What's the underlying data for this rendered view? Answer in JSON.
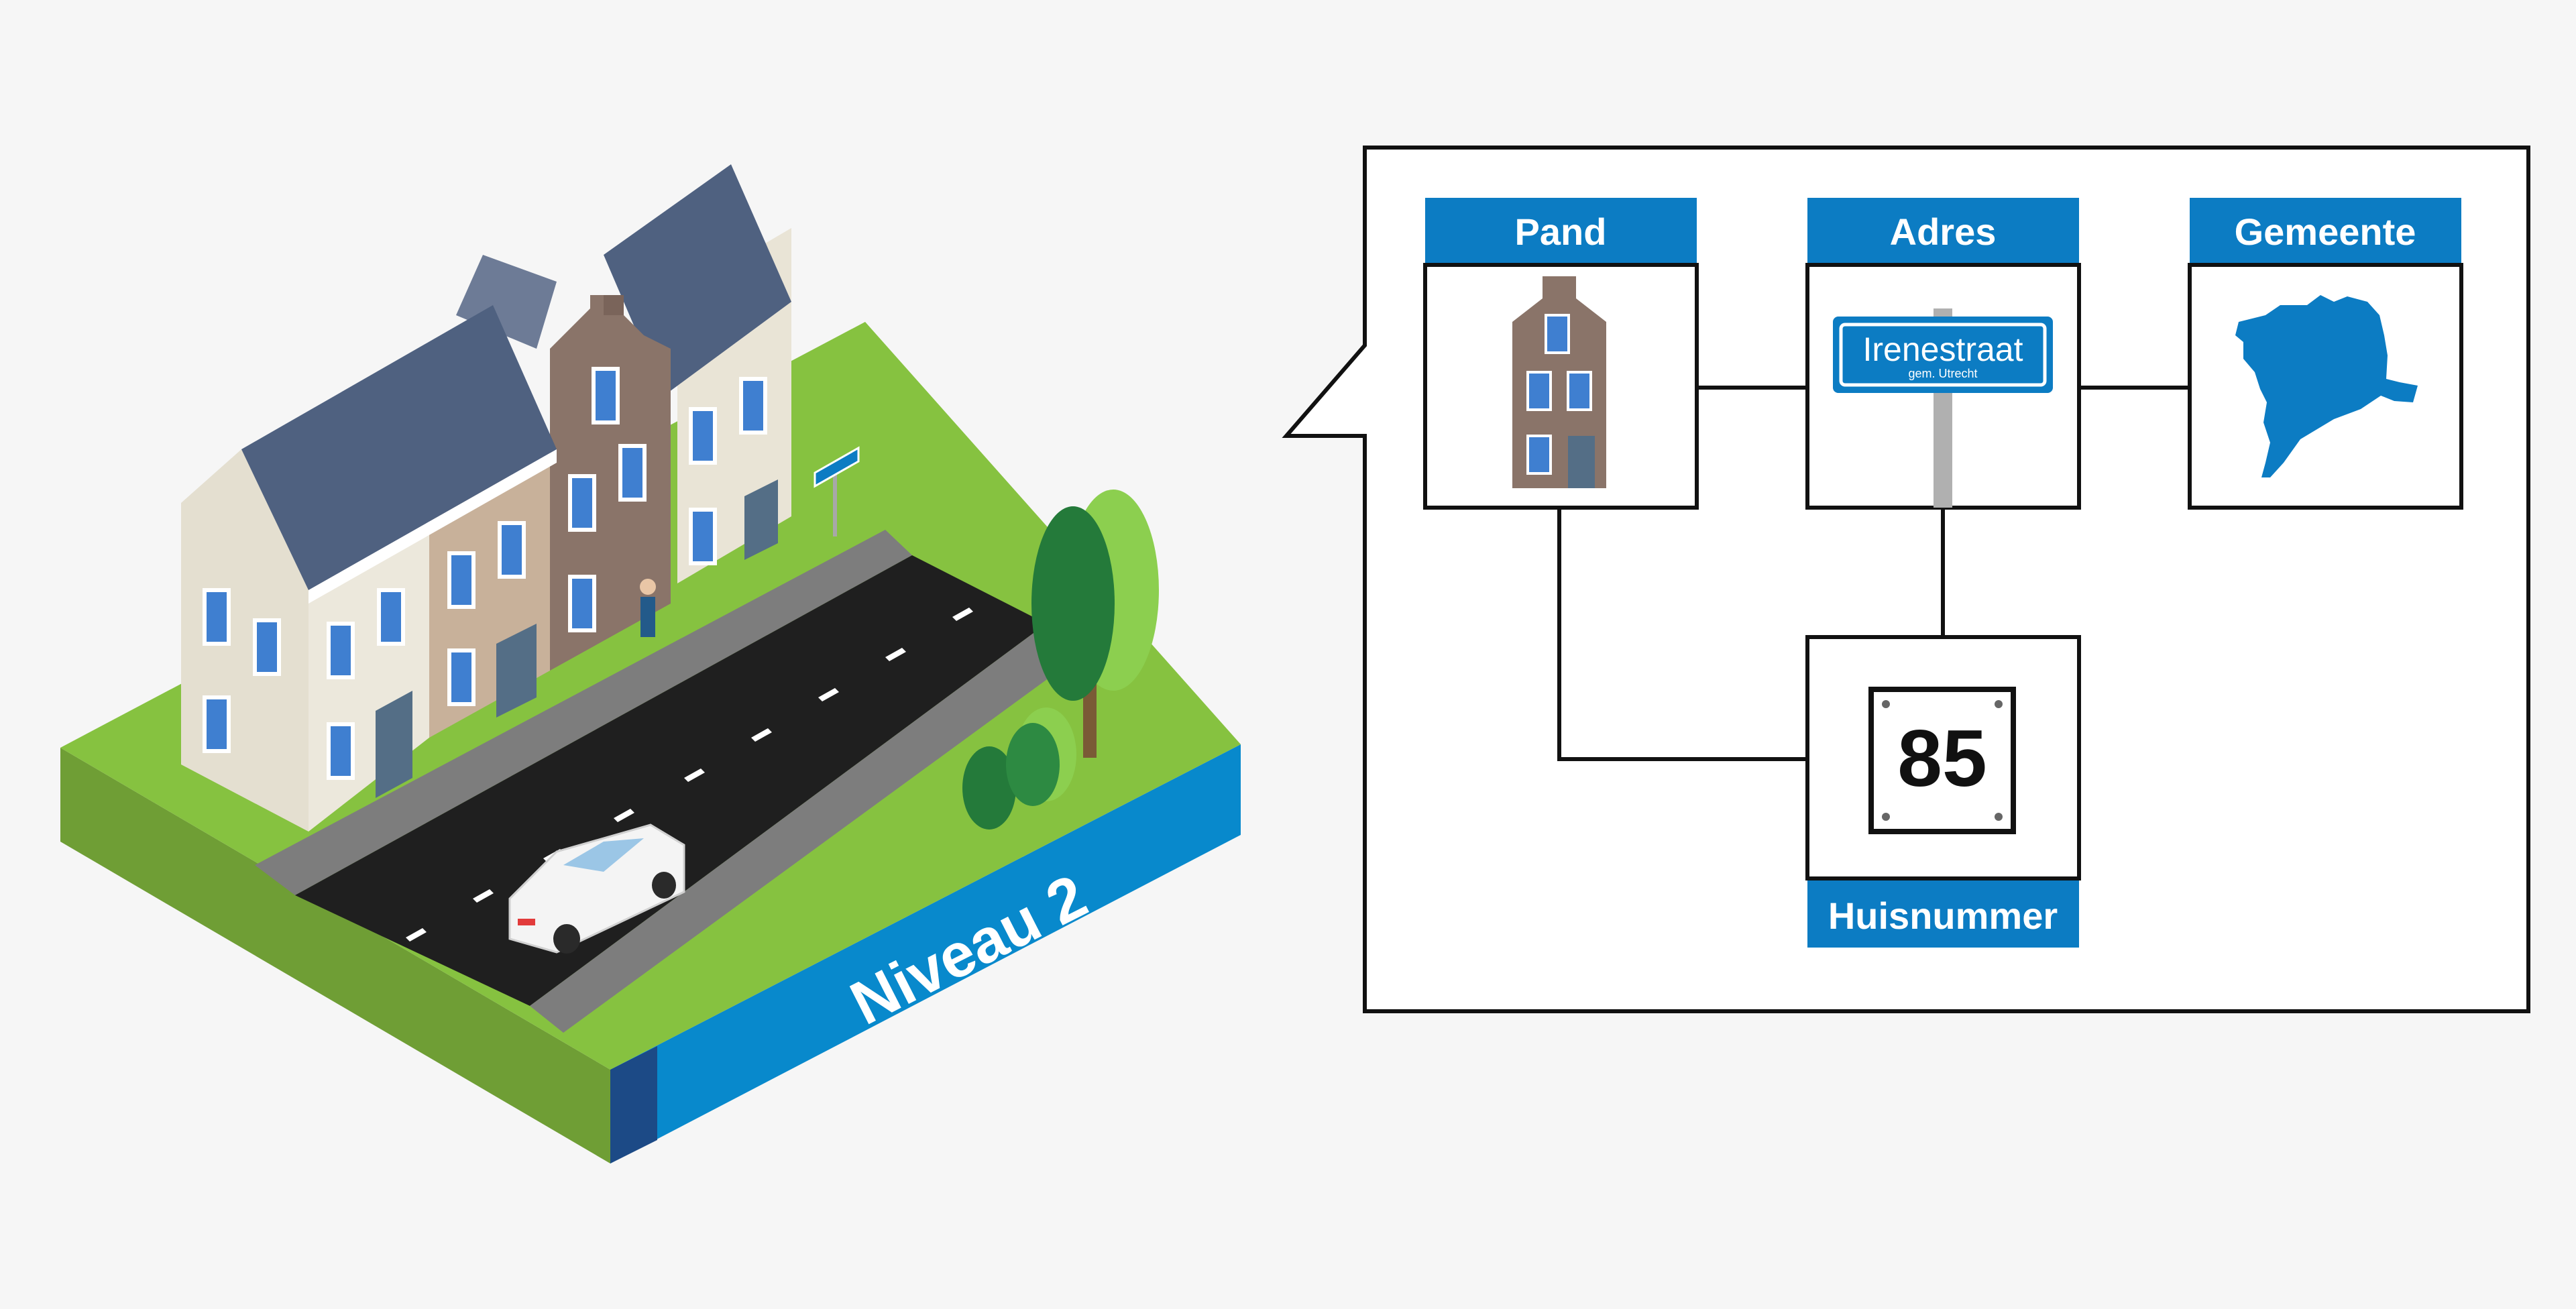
{
  "colors": {
    "background": "#f6f6f6",
    "accent_blue": "#0c7cc3",
    "roof": "#4f6180",
    "road": "#1f1f1f",
    "grass": "#86c240"
  },
  "scene": {
    "level_label": "Niveau 2"
  },
  "diagram": {
    "pand": {
      "label": "Pand",
      "icon": "building-icon"
    },
    "adres": {
      "label": "Adres",
      "street": "Irenestraat",
      "municipality_small": "gem. Utrecht",
      "icon": "street-sign-icon"
    },
    "gemeente": {
      "label": "Gemeente",
      "icon": "municipality-map-icon"
    },
    "huisnummer": {
      "label": "Huisnummer",
      "number": "85",
      "icon": "house-number-plate-icon"
    }
  }
}
